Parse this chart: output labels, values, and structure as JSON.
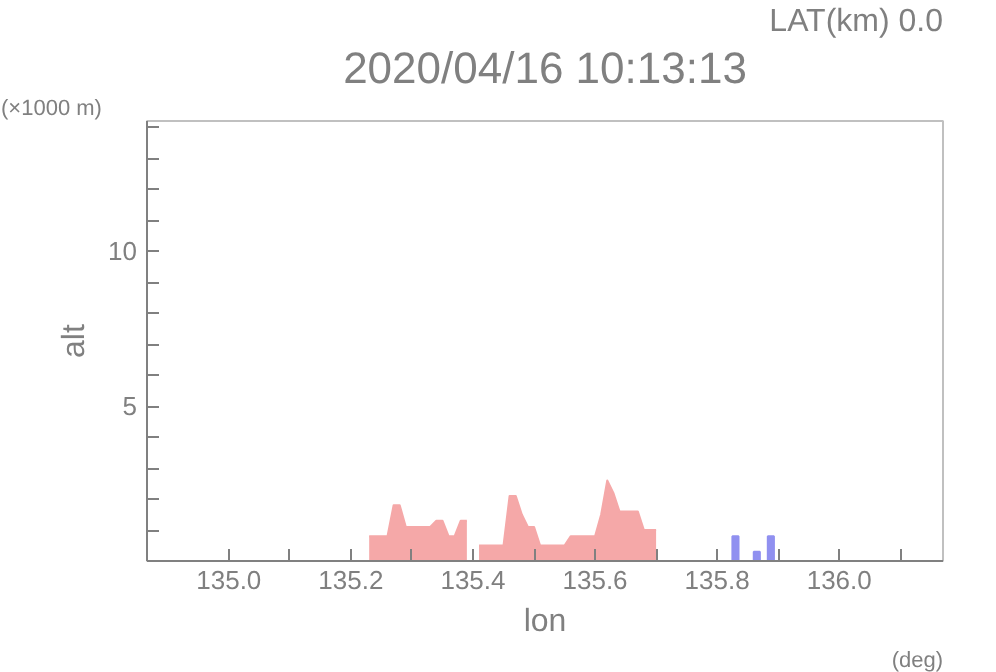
{
  "chart_data": {
    "type": "area",
    "title": "2020/04/16 10:13:13",
    "xlabel": "lon",
    "ylabel": "alt",
    "annotations": [
      "LAT(km) 0.0",
      "(×1000 m)",
      "(deg)"
    ],
    "series": [
      {
        "color": "#f5a8a8",
        "x": [
          135.23,
          135.24,
          135.25,
          135.26,
          135.27,
          135.28,
          135.29,
          135.3,
          135.31,
          135.32,
          135.33,
          135.34,
          135.35,
          135.36,
          135.37,
          135.38,
          135.39,
          135.4,
          135.41,
          135.42,
          135.43,
          135.44,
          135.45,
          135.46,
          135.47,
          135.48,
          135.49,
          135.5,
          135.51,
          135.52,
          135.53,
          135.54,
          135.55,
          135.56,
          135.57,
          135.58,
          135.59,
          135.6,
          135.61,
          135.62,
          135.63,
          135.64,
          135.65,
          135.66,
          135.67,
          135.68,
          135.69,
          135.7
        ],
        "values": [
          0.8,
          0.8,
          0.8,
          0.8,
          1.8,
          1.8,
          1.1,
          1.1,
          1.1,
          1.1,
          1.1,
          1.3,
          1.3,
          0.8,
          0.8,
          1.3,
          1.3,
          null,
          0.5,
          0.5,
          0.5,
          0.5,
          0.5,
          2.1,
          2.1,
          1.5,
          1.1,
          1.1,
          0.5,
          0.5,
          0.5,
          0.5,
          0.5,
          0.8,
          0.8,
          0.8,
          0.8,
          0.8,
          1.5,
          2.6,
          2.2,
          1.6,
          1.6,
          1.6,
          1.6,
          1.0,
          1.0,
          1.0
        ]
      },
      {
        "type": "bar",
        "color": "#9090f0",
        "x": [
          135.83,
          135.865,
          135.888
        ],
        "values": [
          0.8,
          0.3,
          0.8
        ]
      }
    ],
    "xlim": [
      134.866,
      136.17
    ],
    "ylim": [
      0,
      14.2
    ],
    "xticks": [
      {
        "value": 135.0,
        "label": "135.0"
      },
      {
        "value": 135.1,
        "label": null
      },
      {
        "value": 135.2,
        "label": "135.2"
      },
      {
        "value": 135.3,
        "label": null
      },
      {
        "value": 135.4,
        "label": "135.4"
      },
      {
        "value": 135.5,
        "label": null
      },
      {
        "value": 135.6,
        "label": "135.6"
      },
      {
        "value": 135.7,
        "label": null
      },
      {
        "value": 135.8,
        "label": "135.8"
      },
      {
        "value": 135.9,
        "label": null
      },
      {
        "value": 136.0,
        "label": "136.0"
      },
      {
        "value": 136.1,
        "label": null
      }
    ],
    "yticks": [
      {
        "value": 1,
        "label": null
      },
      {
        "value": 2,
        "label": null
      },
      {
        "value": 3,
        "label": null
      },
      {
        "value": 4,
        "label": null
      },
      5,
      {
        "value": 6,
        "label": null
      },
      {
        "value": 7,
        "label": null
      },
      {
        "value": 8,
        "label": null
      },
      {
        "value": 9,
        "label": null
      },
      10,
      {
        "value": 11,
        "label": null
      },
      {
        "value": 12,
        "label": null
      },
      {
        "value": 13,
        "label": null
      },
      {
        "value": 14,
        "label": null
      }
    ],
    "grid": false
  }
}
